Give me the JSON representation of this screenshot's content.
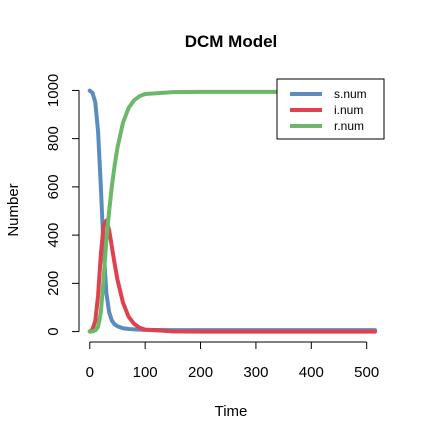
{
  "chart_data": {
    "type": "line",
    "title": "DCM Model",
    "xlabel": "Time",
    "ylabel": "Number",
    "xlim": [
      -5,
      515
    ],
    "ylim": [
      -10,
      1010
    ],
    "xticks": [
      0,
      100,
      200,
      300,
      400,
      500
    ],
    "yticks": [
      0,
      200,
      400,
      600,
      800,
      1000
    ],
    "grid": false,
    "legend_position": "top-right",
    "x": [
      0,
      5,
      10,
      15,
      20,
      25,
      30,
      35,
      40,
      45,
      50,
      60,
      70,
      80,
      90,
      100,
      150,
      200,
      250,
      300,
      350,
      400,
      450,
      500,
      515
    ],
    "series": [
      {
        "name": "s.num",
        "color": "#5b8cc0",
        "values": [
          999,
          990,
          950,
          830,
          600,
          340,
          160,
          80,
          45,
          30,
          22,
          14,
          11,
          9,
          8,
          7,
          6,
          6,
          6,
          6,
          6,
          6,
          6,
          6,
          6
        ]
      },
      {
        "name": "i.num",
        "color": "#e0414f",
        "values": [
          1,
          9,
          45,
          150,
          320,
          440,
          460,
          420,
          350,
          280,
          215,
          120,
          62,
          32,
          16,
          8,
          1,
          0,
          0,
          0,
          0,
          0,
          0,
          0,
          0
        ]
      },
      {
        "name": "r.num",
        "color": "#6bb86a",
        "values": [
          0,
          1,
          5,
          20,
          80,
          220,
          380,
          500,
          605,
          690,
          763,
          866,
          927,
          959,
          976,
          985,
          993,
          994,
          994,
          994,
          994,
          994,
          994,
          994,
          994
        ]
      }
    ]
  }
}
